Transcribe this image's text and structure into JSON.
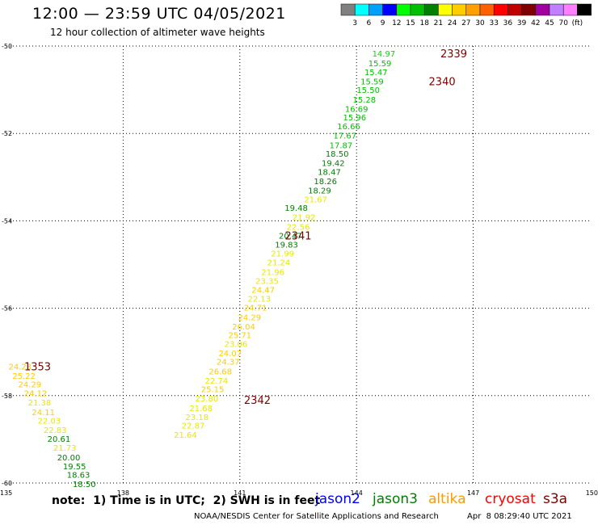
{
  "header": {
    "title": "12:00 — 23:59 UTC 04/05/2021",
    "subtitle": "12 hour collection of altimeter wave heights"
  },
  "legend_scale": {
    "colors": [
      "#808080",
      "#00ffff",
      "#00a0ff",
      "#0000ff",
      "#00ff00",
      "#00c000",
      "#008000",
      "#ffff00",
      "#ffcc00",
      "#ffa000",
      "#ff6000",
      "#ff0000",
      "#c00000",
      "#800000",
      "#a000a0",
      "#c080ff",
      "#ff80ff",
      "#000000"
    ],
    "labels": [
      "3",
      "6",
      "9",
      "12",
      "15",
      "18",
      "21",
      "24",
      "27",
      "30",
      "33",
      "36",
      "39",
      "42",
      "45",
      "70",
      "(ft)"
    ]
  },
  "footer": {
    "note": "note:  1) Time is in UTC;  2) SWH is in feet",
    "satellites": [
      {
        "name": "jason2",
        "color": "#0000ff"
      },
      {
        "name": "jason3",
        "color": "#008000"
      },
      {
        "name": "altika",
        "color": "#ff9900"
      },
      {
        "name": "cryosat",
        "color": "#ff0000"
      },
      {
        "name": "s3a",
        "color": "#800000"
      }
    ],
    "credit": "NOAA/NESDIS Center for Satellite Applications and Research",
    "timestamp": "Apr  8 08:29:40 UTC 2021"
  },
  "chart_data": {
    "type": "scatter",
    "xlim": [
      135,
      150
    ],
    "ylim": [
      -60,
      -50
    ],
    "x_ticks": [
      "135",
      "138",
      "141",
      "144",
      "147",
      "150"
    ],
    "y_ticks": [
      "-50",
      "-52",
      "-54",
      "-56",
      "-58",
      "-60"
    ],
    "grid": true,
    "pass_labels": [
      {
        "text": "2339",
        "x": 146.5,
        "y": -50.17
      },
      {
        "text": "2340",
        "x": 146.2,
        "y": -50.8
      },
      {
        "text": "2341",
        "x": 142.5,
        "y": -54.33
      },
      {
        "text": "1353",
        "x": 135.8,
        "y": -57.33
      },
      {
        "text": "2342",
        "x": 141.45,
        "y": -58.1
      }
    ],
    "points": [
      {
        "v": "14.97",
        "x": 144.7,
        "y": -50.17,
        "c": "#00dd00"
      },
      {
        "v": "15.59",
        "x": 144.6,
        "y": -50.39,
        "c": "#00c000"
      },
      {
        "v": "15.47",
        "x": 144.5,
        "y": -50.59,
        "c": "#00c000"
      },
      {
        "v": "15.59",
        "x": 144.4,
        "y": -50.8,
        "c": "#00c000"
      },
      {
        "v": "15.50",
        "x": 144.3,
        "y": -51.0,
        "c": "#00c000"
      },
      {
        "v": "15.28",
        "x": 144.2,
        "y": -51.22,
        "c": "#00c000"
      },
      {
        "v": "16.69",
        "x": 144.0,
        "y": -51.43,
        "c": "#00c000"
      },
      {
        "v": "15.96",
        "x": 143.95,
        "y": -51.63,
        "c": "#00c000"
      },
      {
        "v": "16.66",
        "x": 143.8,
        "y": -51.83,
        "c": "#00c000"
      },
      {
        "v": "17.67",
        "x": 143.7,
        "y": -52.04,
        "c": "#00c000"
      },
      {
        "v": "17.87",
        "x": 143.6,
        "y": -52.26,
        "c": "#00c000"
      },
      {
        "v": "18.50",
        "x": 143.5,
        "y": -52.46,
        "c": "#008000"
      },
      {
        "v": "19.42",
        "x": 143.4,
        "y": -52.67,
        "c": "#008000"
      },
      {
        "v": "18.47",
        "x": 143.3,
        "y": -52.87,
        "c": "#008000"
      },
      {
        "v": "18.26",
        "x": 143.2,
        "y": -53.09,
        "c": "#008000"
      },
      {
        "v": "18.29",
        "x": 143.05,
        "y": -53.3,
        "c": "#008000"
      },
      {
        "v": "21.67",
        "x": 142.95,
        "y": -53.5,
        "c": "#e8e800"
      },
      {
        "v": "19.48",
        "x": 142.45,
        "y": -53.7,
        "c": "#008000"
      },
      {
        "v": "21.92",
        "x": 142.65,
        "y": -53.91,
        "c": "#e8e800"
      },
      {
        "v": "22.56",
        "x": 142.5,
        "y": -54.13,
        "c": "#e8e800"
      },
      {
        "v": "20.47",
        "x": 142.3,
        "y": -54.33,
        "c": "#008000"
      },
      {
        "v": "19.83",
        "x": 142.2,
        "y": -54.54,
        "c": "#008000"
      },
      {
        "v": "21.99",
        "x": 142.1,
        "y": -54.74,
        "c": "#e8e800"
      },
      {
        "v": "21.24",
        "x": 142.0,
        "y": -54.94,
        "c": "#e8e800"
      },
      {
        "v": "21.96",
        "x": 141.85,
        "y": -55.17,
        "c": "#e8e800"
      },
      {
        "v": "23.35",
        "x": 141.7,
        "y": -55.37,
        "c": "#e8e800"
      },
      {
        "v": "24.47",
        "x": 141.6,
        "y": -55.57,
        "c": "#ffcc00"
      },
      {
        "v": "22.13",
        "x": 141.5,
        "y": -55.78,
        "c": "#e8e800"
      },
      {
        "v": "24.71",
        "x": 141.4,
        "y": -55.98,
        "c": "#ffcc00"
      },
      {
        "v": "24.29",
        "x": 141.25,
        "y": -56.2,
        "c": "#ffcc00"
      },
      {
        "v": "26.04",
        "x": 141.1,
        "y": -56.41,
        "c": "#ffcc00"
      },
      {
        "v": "25.71",
        "x": 141.0,
        "y": -56.61,
        "c": "#ffcc00"
      },
      {
        "v": "23.06",
        "x": 140.9,
        "y": -56.81,
        "c": "#e8e800"
      },
      {
        "v": "24.07",
        "x": 140.75,
        "y": -57.02,
        "c": "#ffcc00"
      },
      {
        "v": "24.37",
        "x": 140.7,
        "y": -57.22,
        "c": "#ffcc00"
      },
      {
        "v": "26.68",
        "x": 140.5,
        "y": -57.44,
        "c": "#ffcc00"
      },
      {
        "v": "22.74",
        "x": 140.4,
        "y": -57.65,
        "c": "#e8e800"
      },
      {
        "v": "25.15",
        "x": 140.3,
        "y": -57.85,
        "c": "#ffcc00"
      },
      {
        "v": "23.80",
        "x": 140.15,
        "y": -58.06,
        "c": "#e8e800"
      },
      {
        "v": "21.68",
        "x": 140.0,
        "y": -58.28,
        "c": "#e8e800"
      },
      {
        "v": "23.18",
        "x": 139.9,
        "y": -58.48,
        "c": "#e8e800"
      },
      {
        "v": "22.87",
        "x": 139.8,
        "y": -58.68,
        "c": "#e8e800"
      },
      {
        "v": "21.64",
        "x": 139.6,
        "y": -58.89,
        "c": "#e8e800"
      },
      {
        "v": "24.23",
        "x": 135.35,
        "y": -57.33,
        "c": "#ffcc00"
      },
      {
        "v": "25.22",
        "x": 135.45,
        "y": -57.54,
        "c": "#ffcc00"
      },
      {
        "v": "24.29",
        "x": 135.6,
        "y": -57.74,
        "c": "#ffcc00"
      },
      {
        "v": "24.12",
        "x": 135.75,
        "y": -57.94,
        "c": "#ffcc00"
      },
      {
        "v": "21.38",
        "x": 135.85,
        "y": -58.15,
        "c": "#e8e800"
      },
      {
        "v": "24.11",
        "x": 135.95,
        "y": -58.37,
        "c": "#ffcc00"
      },
      {
        "v": "22.03",
        "x": 136.1,
        "y": -58.57,
        "c": "#e8e800"
      },
      {
        "v": "22.83",
        "x": 136.25,
        "y": -58.78,
        "c": "#e8e800"
      },
      {
        "v": "20.61",
        "x": 136.35,
        "y": -58.98,
        "c": "#008000"
      },
      {
        "v": "21.73",
        "x": 136.5,
        "y": -59.19,
        "c": "#e8e800"
      },
      {
        "v": "20.00",
        "x": 136.6,
        "y": -59.41,
        "c": "#008000"
      },
      {
        "v": "19.55",
        "x": 136.75,
        "y": -59.61,
        "c": "#008000"
      },
      {
        "v": "18.63",
        "x": 136.85,
        "y": -59.81,
        "c": "#008000"
      },
      {
        "v": "18.50",
        "x": 137.0,
        "y": -60.02,
        "c": "#008000"
      }
    ]
  }
}
